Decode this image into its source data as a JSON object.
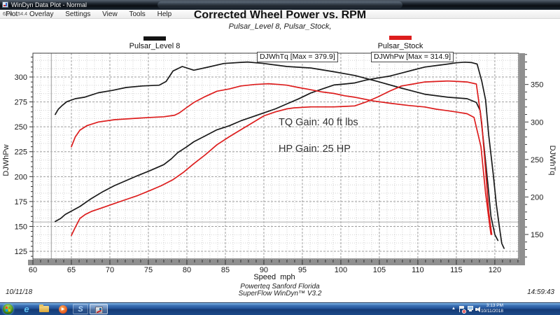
{
  "window": {
    "title": "WinDyn Data Plot - Normal",
    "menu": [
      "Plot",
      "Overlay",
      "Settings",
      "View",
      "Tools",
      "Help"
    ],
    "cursor_readout": "62.4, 154.4"
  },
  "chart": {
    "title": "Corrected Wheel Power vs. RPM",
    "subtitle": "Pulsar_Level 8, Pulsar_Stock,",
    "legend": [
      {
        "label": "Pulsar_Level 8",
        "color": "#141414"
      },
      {
        "label": "Pulsar_Stock",
        "color": "#dd1d1d"
      }
    ],
    "max_label_tq": "DJWhTq [Max = 379.9]",
    "max_label_pw": "DJWhPw [Max = 314.9]",
    "annotation_tq": "TQ Gain: 40 ft lbs",
    "annotation_hp": "HP Gain: 25 HP",
    "y_left_title": "DJWhPw",
    "y_right_title": "DJWhTq",
    "x_title": "Speed  mph"
  },
  "chart_data": {
    "type": "line",
    "title": "Corrected Wheel Power vs. RPM",
    "subtitle": "Pulsar_Level 8, Pulsar_Stock,",
    "xlabel": "Speed  mph",
    "ylabel_left": "DJWhPw",
    "ylabel_right": "DJWhTq",
    "grid": true,
    "legend_position": "top",
    "xlim": [
      60,
      123.1
    ],
    "ylim_left": [
      117.3,
      323.9
    ],
    "ylim_right": [
      117.3,
      391.7
    ],
    "x_major_ticks": [
      60,
      65,
      70,
      75,
      80,
      85,
      90,
      95,
      100,
      105,
      110,
      115,
      120
    ],
    "y_left_ticks": [
      125,
      150,
      175,
      200,
      225,
      250,
      275,
      300
    ],
    "y_right_ticks": [
      150,
      200,
      250,
      300,
      350
    ],
    "cursor": {
      "x": 62.4,
      "y_left": 154.4
    },
    "series": [
      {
        "name": "Pulsar_Level 8 DJWhTq",
        "axis": "right",
        "color": "#1a1a1a",
        "max": 379.9,
        "points": [
          [
            62.9,
            310
          ],
          [
            63.3,
            317
          ],
          [
            63.8,
            322
          ],
          [
            64.4,
            327
          ],
          [
            65.5,
            331
          ],
          [
            66.7,
            333
          ],
          [
            67.6,
            336
          ],
          [
            68.5,
            339
          ],
          [
            70.3,
            342
          ],
          [
            72.1,
            346
          ],
          [
            74.2,
            348
          ],
          [
            76.4,
            349
          ],
          [
            77.3,
            354
          ],
          [
            78.2,
            368
          ],
          [
            79.4,
            374
          ],
          [
            80.9,
            369
          ],
          [
            82.7,
            373
          ],
          [
            84.8,
            378
          ],
          [
            87,
            379.5
          ],
          [
            87.9,
            379.9
          ],
          [
            90,
            378
          ],
          [
            93,
            374
          ],
          [
            96.1,
            372
          ],
          [
            99.1,
            367
          ],
          [
            101.8,
            362
          ],
          [
            104.8,
            354
          ],
          [
            107.9,
            345
          ],
          [
            110.9,
            337
          ],
          [
            113.9,
            333
          ],
          [
            116.4,
            331
          ],
          [
            117.6,
            326
          ],
          [
            118.1,
            315
          ],
          [
            118.6,
            267
          ],
          [
            119.1,
            217
          ],
          [
            119.5,
            174
          ],
          [
            120,
            150
          ],
          [
            120.4,
            142
          ]
        ]
      },
      {
        "name": "Pulsar_Level 8 DJWhPw",
        "axis": "left",
        "color": "#1a1a1a",
        "max": 314.9,
        "points": [
          [
            62.9,
            155
          ],
          [
            63.6,
            158
          ],
          [
            64.2,
            162
          ],
          [
            66.1,
            170
          ],
          [
            67.6,
            178
          ],
          [
            69.1,
            185
          ],
          [
            70.6,
            191
          ],
          [
            72.1,
            196
          ],
          [
            73.6,
            201
          ],
          [
            75.2,
            206
          ],
          [
            77,
            212
          ],
          [
            78,
            218
          ],
          [
            78.8,
            224
          ],
          [
            80,
            230
          ],
          [
            80.9,
            235
          ],
          [
            82.4,
            241
          ],
          [
            83.9,
            247
          ],
          [
            85.5,
            251
          ],
          [
            87,
            256
          ],
          [
            88.5,
            260
          ],
          [
            90,
            264
          ],
          [
            91.5,
            268
          ],
          [
            93,
            273
          ],
          [
            94.5,
            278
          ],
          [
            96.1,
            284
          ],
          [
            97.6,
            288
          ],
          [
            99.1,
            292
          ],
          [
            100.5,
            293
          ],
          [
            101.8,
            294
          ],
          [
            103.3,
            297
          ],
          [
            104.8,
            299
          ],
          [
            106.4,
            301
          ],
          [
            107.9,
            304
          ],
          [
            109.4,
            307
          ],
          [
            110.9,
            310
          ],
          [
            112.4,
            311.5
          ],
          [
            113.9,
            313
          ],
          [
            115,
            314.3
          ],
          [
            116.1,
            314.9
          ],
          [
            117,
            314.5
          ],
          [
            117.7,
            313
          ],
          [
            118.3,
            296
          ],
          [
            118.8,
            277
          ],
          [
            119.2,
            242
          ],
          [
            119.8,
            202
          ],
          [
            120.2,
            172
          ],
          [
            120.6,
            149
          ],
          [
            120.9,
            133
          ],
          [
            121.2,
            128
          ]
        ]
      },
      {
        "name": "Pulsar_Stock DJWhTq",
        "axis": "right",
        "color": "#dd1d1d",
        "points": [
          [
            65,
            267
          ],
          [
            65.5,
            280
          ],
          [
            66.1,
            289
          ],
          [
            67,
            295
          ],
          [
            68.5,
            300
          ],
          [
            70.6,
            303
          ],
          [
            73.6,
            305
          ],
          [
            75.2,
            306
          ],
          [
            77,
            307
          ],
          [
            78.4,
            309
          ],
          [
            79,
            312
          ],
          [
            79.8,
            318
          ],
          [
            80.9,
            326
          ],
          [
            82.4,
            334
          ],
          [
            83.9,
            341
          ],
          [
            85.5,
            344
          ],
          [
            87,
            348
          ],
          [
            88.8,
            350
          ],
          [
            90.6,
            351
          ],
          [
            92,
            350
          ],
          [
            93,
            349
          ],
          [
            94.5,
            346
          ],
          [
            96.1,
            343
          ],
          [
            97.6,
            340
          ],
          [
            99.1,
            338
          ],
          [
            100.5,
            335
          ],
          [
            101.8,
            333
          ],
          [
            104.3,
            328
          ],
          [
            106.4,
            325
          ],
          [
            108.8,
            322
          ],
          [
            110.9,
            320
          ],
          [
            112.4,
            317
          ],
          [
            113.9,
            315
          ],
          [
            115.2,
            313
          ],
          [
            116.4,
            311
          ],
          [
            117.3,
            306
          ],
          [
            118.2,
            267
          ],
          [
            118.8,
            205
          ],
          [
            119.3,
            165
          ],
          [
            119.5,
            150
          ]
        ]
      },
      {
        "name": "Pulsar_Stock DJWhPw",
        "axis": "left",
        "color": "#dd1d1d",
        "points": [
          [
            65,
            141
          ],
          [
            65.5,
            149
          ],
          [
            66.1,
            158
          ],
          [
            66.8,
            162
          ],
          [
            67.6,
            165
          ],
          [
            69.1,
            169
          ],
          [
            70.6,
            173
          ],
          [
            72.1,
            177
          ],
          [
            73.6,
            181
          ],
          [
            75.2,
            186
          ],
          [
            76.7,
            191
          ],
          [
            78.2,
            197
          ],
          [
            79.5,
            204
          ],
          [
            80.9,
            213
          ],
          [
            82.4,
            222
          ],
          [
            83.9,
            232
          ],
          [
            85.5,
            240
          ],
          [
            87,
            247
          ],
          [
            88.5,
            254
          ],
          [
            90,
            261
          ],
          [
            91.5,
            265
          ],
          [
            93,
            268
          ],
          [
            93.9,
            269
          ],
          [
            95,
            269.5
          ],
          [
            96.1,
            270
          ],
          [
            97.6,
            270
          ],
          [
            99.1,
            270
          ],
          [
            100.5,
            270.5
          ],
          [
            101.8,
            271
          ],
          [
            103.3,
            275
          ],
          [
            104.8,
            280
          ],
          [
            106.4,
            286
          ],
          [
            107.9,
            291
          ],
          [
            109.4,
            293
          ],
          [
            110.9,
            295
          ],
          [
            112.4,
            295.5
          ],
          [
            113.9,
            296
          ],
          [
            115.2,
            295.5
          ],
          [
            116.4,
            295
          ],
          [
            117.6,
            293
          ],
          [
            118.3,
            254
          ],
          [
            118.8,
            207
          ],
          [
            119.2,
            165
          ],
          [
            119.6,
            142
          ]
        ]
      }
    ]
  },
  "footer": {
    "date": "10/11/18",
    "center_line1": "Powerteq Sanford Florida",
    "center_line2": "SuperFlow WinDyn™ V3.2",
    "time": "14:59:43"
  },
  "taskbar": {
    "clock_time": "3:13 PM",
    "clock_date": "10/11/2018"
  },
  "icons": {
    "ie_glyph": "e",
    "media_glyph": "▶",
    "superflow_glyph": "S",
    "tray_caret": "▲",
    "flag_badge": "x"
  }
}
